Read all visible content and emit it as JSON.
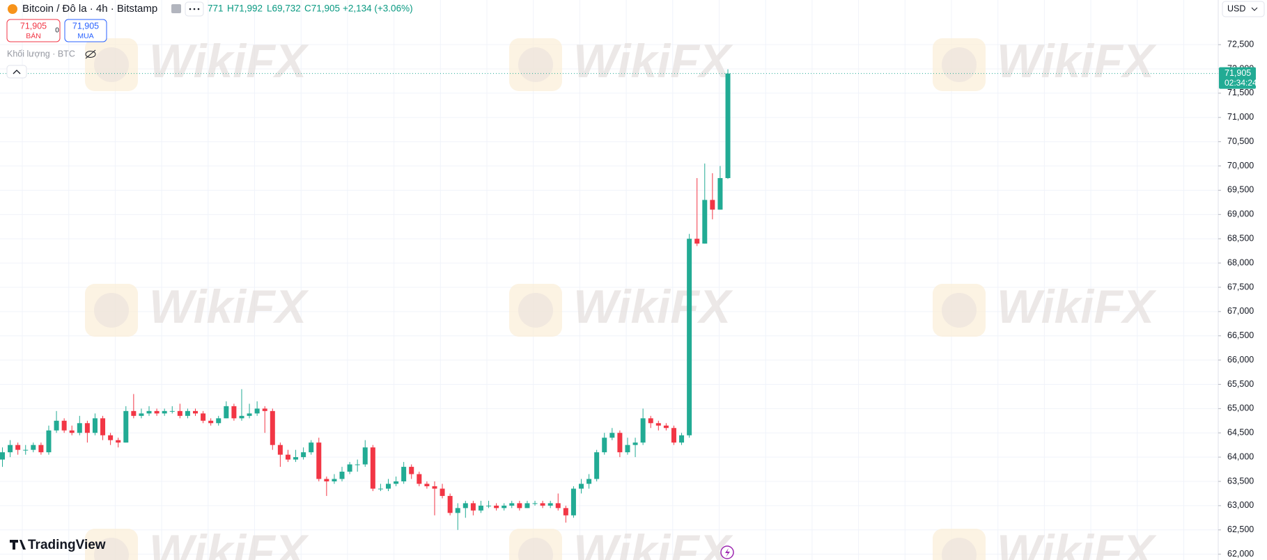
{
  "header": {
    "symbol": "Bitcoin / Đô la · 4h · Bitstamp",
    "open_partial": "771",
    "high": "H71,992",
    "low": "L69,732",
    "close": "C71,905",
    "change": "+2,134 (+3.06%)"
  },
  "trade": {
    "sell_price": "71,905",
    "sell_label": "BÁN",
    "spread": "0",
    "buy_price": "71,905",
    "buy_label": "MUA"
  },
  "volume_label": "Khối lượng · BTC",
  "currency": "USD",
  "countdown": "02:34:24",
  "brand": "TradingView",
  "watermark": "WikiFX",
  "chart_data": {
    "type": "candlestick",
    "open": [
      63950,
      64100,
      64250,
      64150,
      64150,
      64250,
      64100,
      64550,
      64750,
      64550,
      64500,
      64700,
      64500,
      64800,
      64450,
      64350,
      64300,
      64950,
      64850,
      64900,
      64950,
      64900,
      64950,
      64950,
      64850,
      64950,
      64900,
      64750,
      64700,
      64800,
      65050,
      64800,
      64850,
      64900,
      65000,
      64950,
      64250,
      64050,
      63950,
      64000,
      64100,
      64300,
      63550,
      63500,
      63550,
      63700,
      63850,
      63850,
      64200,
      63350,
      63350,
      63450,
      63500,
      63800,
      63650,
      63450,
      63400,
      63350,
      63200,
      62850,
      62950,
      63050,
      62900,
      63000,
      63000,
      62950,
      63000,
      63050,
      62950,
      63050,
      63050,
      63000,
      63050,
      62950,
      62800,
      63350,
      63450,
      63550,
      64100,
      64400,
      64500,
      64100,
      64250,
      64300,
      64800,
      64700,
      64650,
      64600,
      64300,
      64450,
      68500,
      68400,
      69300,
      69100,
      69750
    ],
    "high": [
      64200,
      64350,
      64300,
      64250,
      64300,
      64300,
      64650,
      64950,
      64800,
      64650,
      64850,
      64750,
      64900,
      64850,
      64500,
      64400,
      65050,
      65300,
      65000,
      65050,
      65000,
      65000,
      65050,
      65100,
      65000,
      65000,
      64950,
      64800,
      64850,
      65150,
      65100,
      65400,
      65100,
      65150,
      65050,
      65000,
      64300,
      64150,
      64150,
      64200,
      64350,
      64400,
      63600,
      63650,
      63800,
      63900,
      63950,
      64350,
      64250,
      63450,
      63550,
      63600,
      63900,
      63850,
      63700,
      63500,
      63500,
      63450,
      63250,
      63050,
      63100,
      63100,
      63100,
      63100,
      63050,
      63050,
      63100,
      63100,
      63100,
      63100,
      63100,
      63100,
      63250,
      63000,
      63400,
      63550,
      63650,
      64150,
      64500,
      64600,
      64550,
      64400,
      64400,
      65000,
      64850,
      64750,
      64700,
      64650,
      64500,
      68600,
      69750,
      70050,
      69850,
      70000,
      71992
    ],
    "low": [
      63800,
      64000,
      64050,
      64050,
      64100,
      64050,
      64050,
      64500,
      64500,
      64450,
      64450,
      64300,
      64450,
      64350,
      64250,
      64200,
      64300,
      64800,
      64800,
      64850,
      64850,
      64850,
      64900,
      64800,
      64800,
      64850,
      64700,
      64650,
      64650,
      64800,
      64750,
      64750,
      64800,
      64850,
      64500,
      64150,
      63800,
      63900,
      63900,
      63950,
      64050,
      63500,
      63200,
      63450,
      63500,
      63650,
      63700,
      63800,
      63300,
      63300,
      63300,
      63400,
      63450,
      63550,
      63400,
      63350,
      62800,
      63150,
      62800,
      62500,
      62750,
      62800,
      62850,
      62950,
      62900,
      62900,
      62950,
      62900,
      62950,
      63000,
      62950,
      62950,
      62900,
      62650,
      62750,
      63250,
      63350,
      63500,
      64050,
      64350,
      64000,
      64050,
      64000,
      64250,
      64600,
      64550,
      64550,
      64250,
      64250,
      64400,
      68350,
      68400,
      68900,
      69100,
      69732
    ],
    "close": [
      64100,
      64250,
      64150,
      64150,
      64250,
      64100,
      64550,
      64750,
      64550,
      64500,
      64700,
      64500,
      64800,
      64450,
      64350,
      64300,
      64950,
      64850,
      64900,
      64950,
      64900,
      64950,
      64950,
      64850,
      64950,
      64900,
      64750,
      64700,
      64800,
      65050,
      64800,
      64850,
      64900,
      65000,
      64950,
      64250,
      64050,
      63950,
      64000,
      64100,
      64300,
      63550,
      63500,
      63550,
      63700,
      63850,
      63850,
      64200,
      63350,
      63350,
      63450,
      63500,
      63800,
      63650,
      63450,
      63400,
      63350,
      63200,
      62850,
      62950,
      63050,
      62900,
      63000,
      63000,
      62950,
      63000,
      63050,
      62950,
      63050,
      63050,
      63000,
      63050,
      62950,
      62800,
      63350,
      63450,
      63550,
      64100,
      64400,
      64500,
      64100,
      64250,
      64300,
      64800,
      64700,
      64650,
      64600,
      64300,
      64450,
      68500,
      68400,
      69300,
      69100,
      69750,
      71905
    ],
    "up_color": "#22ab94",
    "down_color": "#f23645",
    "last_price": {
      "value": 71905,
      "label": "71,905"
    },
    "ylim": [
      61880,
      73420
    ],
    "yticks": [
      {
        "value": 62000,
        "label": "62,000"
      },
      {
        "value": 62500,
        "label": "62,500"
      },
      {
        "value": 63000,
        "label": "63,000"
      },
      {
        "value": 63500,
        "label": "63,500"
      },
      {
        "value": 64000,
        "label": "64,000"
      },
      {
        "value": 64500,
        "label": "64,500"
      },
      {
        "value": 65000,
        "label": "65,000"
      },
      {
        "value": 65500,
        "label": "65,500"
      },
      {
        "value": 66000,
        "label": "66,000"
      },
      {
        "value": 66500,
        "label": "66,500"
      },
      {
        "value": 67000,
        "label": "67,000"
      },
      {
        "value": 67500,
        "label": "67,500"
      },
      {
        "value": 68000,
        "label": "68,000"
      },
      {
        "value": 68500,
        "label": "68,500"
      },
      {
        "value": 69000,
        "label": "69,000"
      },
      {
        "value": 69500,
        "label": "69,500"
      },
      {
        "value": 70000,
        "label": "70,000"
      },
      {
        "value": 70500,
        "label": "70,500"
      },
      {
        "value": 71000,
        "label": "71,000"
      },
      {
        "value": 71500,
        "label": "71,500"
      },
      {
        "value": 72000,
        "label": "72,000"
      },
      {
        "value": 72500,
        "label": "72,500"
      }
    ],
    "grid": true
  }
}
